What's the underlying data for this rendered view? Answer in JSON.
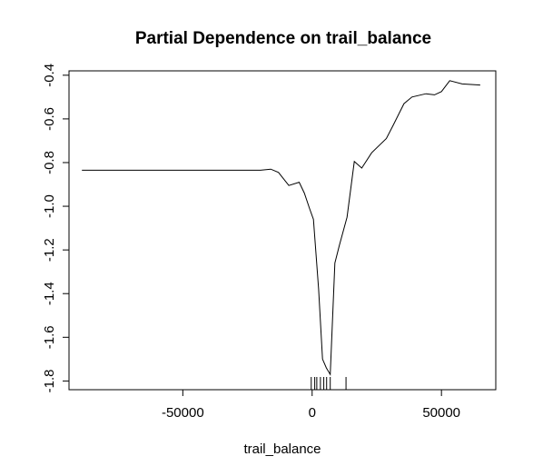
{
  "chart_data": {
    "type": "line",
    "title": "Partial Dependence on trail_balance",
    "xlabel": "trail_balance",
    "ylabel": "",
    "xlim": [
      -94000,
      71000
    ],
    "ylim": [
      -1.84,
      -0.38
    ],
    "xticks": [
      -50000,
      0,
      50000
    ],
    "xtick_labels": [
      "-50000",
      "0",
      "50000"
    ],
    "yticks": [
      -1.8,
      -1.6,
      -1.4,
      -1.2,
      -1.0,
      -0.8,
      -0.6,
      -0.4
    ],
    "ytick_labels": [
      "-1.8",
      "-1.6",
      "-1.4",
      "-1.2",
      "-1.0",
      "-0.8",
      "-0.6",
      "-0.4"
    ],
    "grid": false,
    "series": [
      {
        "x": [
          -89000,
          -20000,
          -16000,
          -13000,
          -9000,
          -5000,
          -3000,
          -1000,
          500,
          2500,
          4000,
          5500,
          7000,
          8800,
          10500,
          13500,
          16300,
          19200,
          23000,
          28700,
          31300,
          35500,
          38600,
          44000,
          47300,
          50000,
          53200,
          58000,
          65000
        ],
        "y": [
          -0.835,
          -0.835,
          -0.83,
          -0.845,
          -0.905,
          -0.89,
          -0.94,
          -1.01,
          -1.06,
          -1.38,
          -1.7,
          -1.74,
          -1.77,
          -1.26,
          -1.18,
          -1.05,
          -0.795,
          -0.825,
          -0.755,
          -0.69,
          -0.63,
          -0.53,
          -0.5,
          -0.485,
          -0.49,
          -0.475,
          -0.425,
          -0.44,
          -0.445
        ]
      }
    ],
    "rug": [
      -350,
      1000,
      1800,
      3200,
      4500,
      5600,
      7000,
      13100
    ]
  }
}
